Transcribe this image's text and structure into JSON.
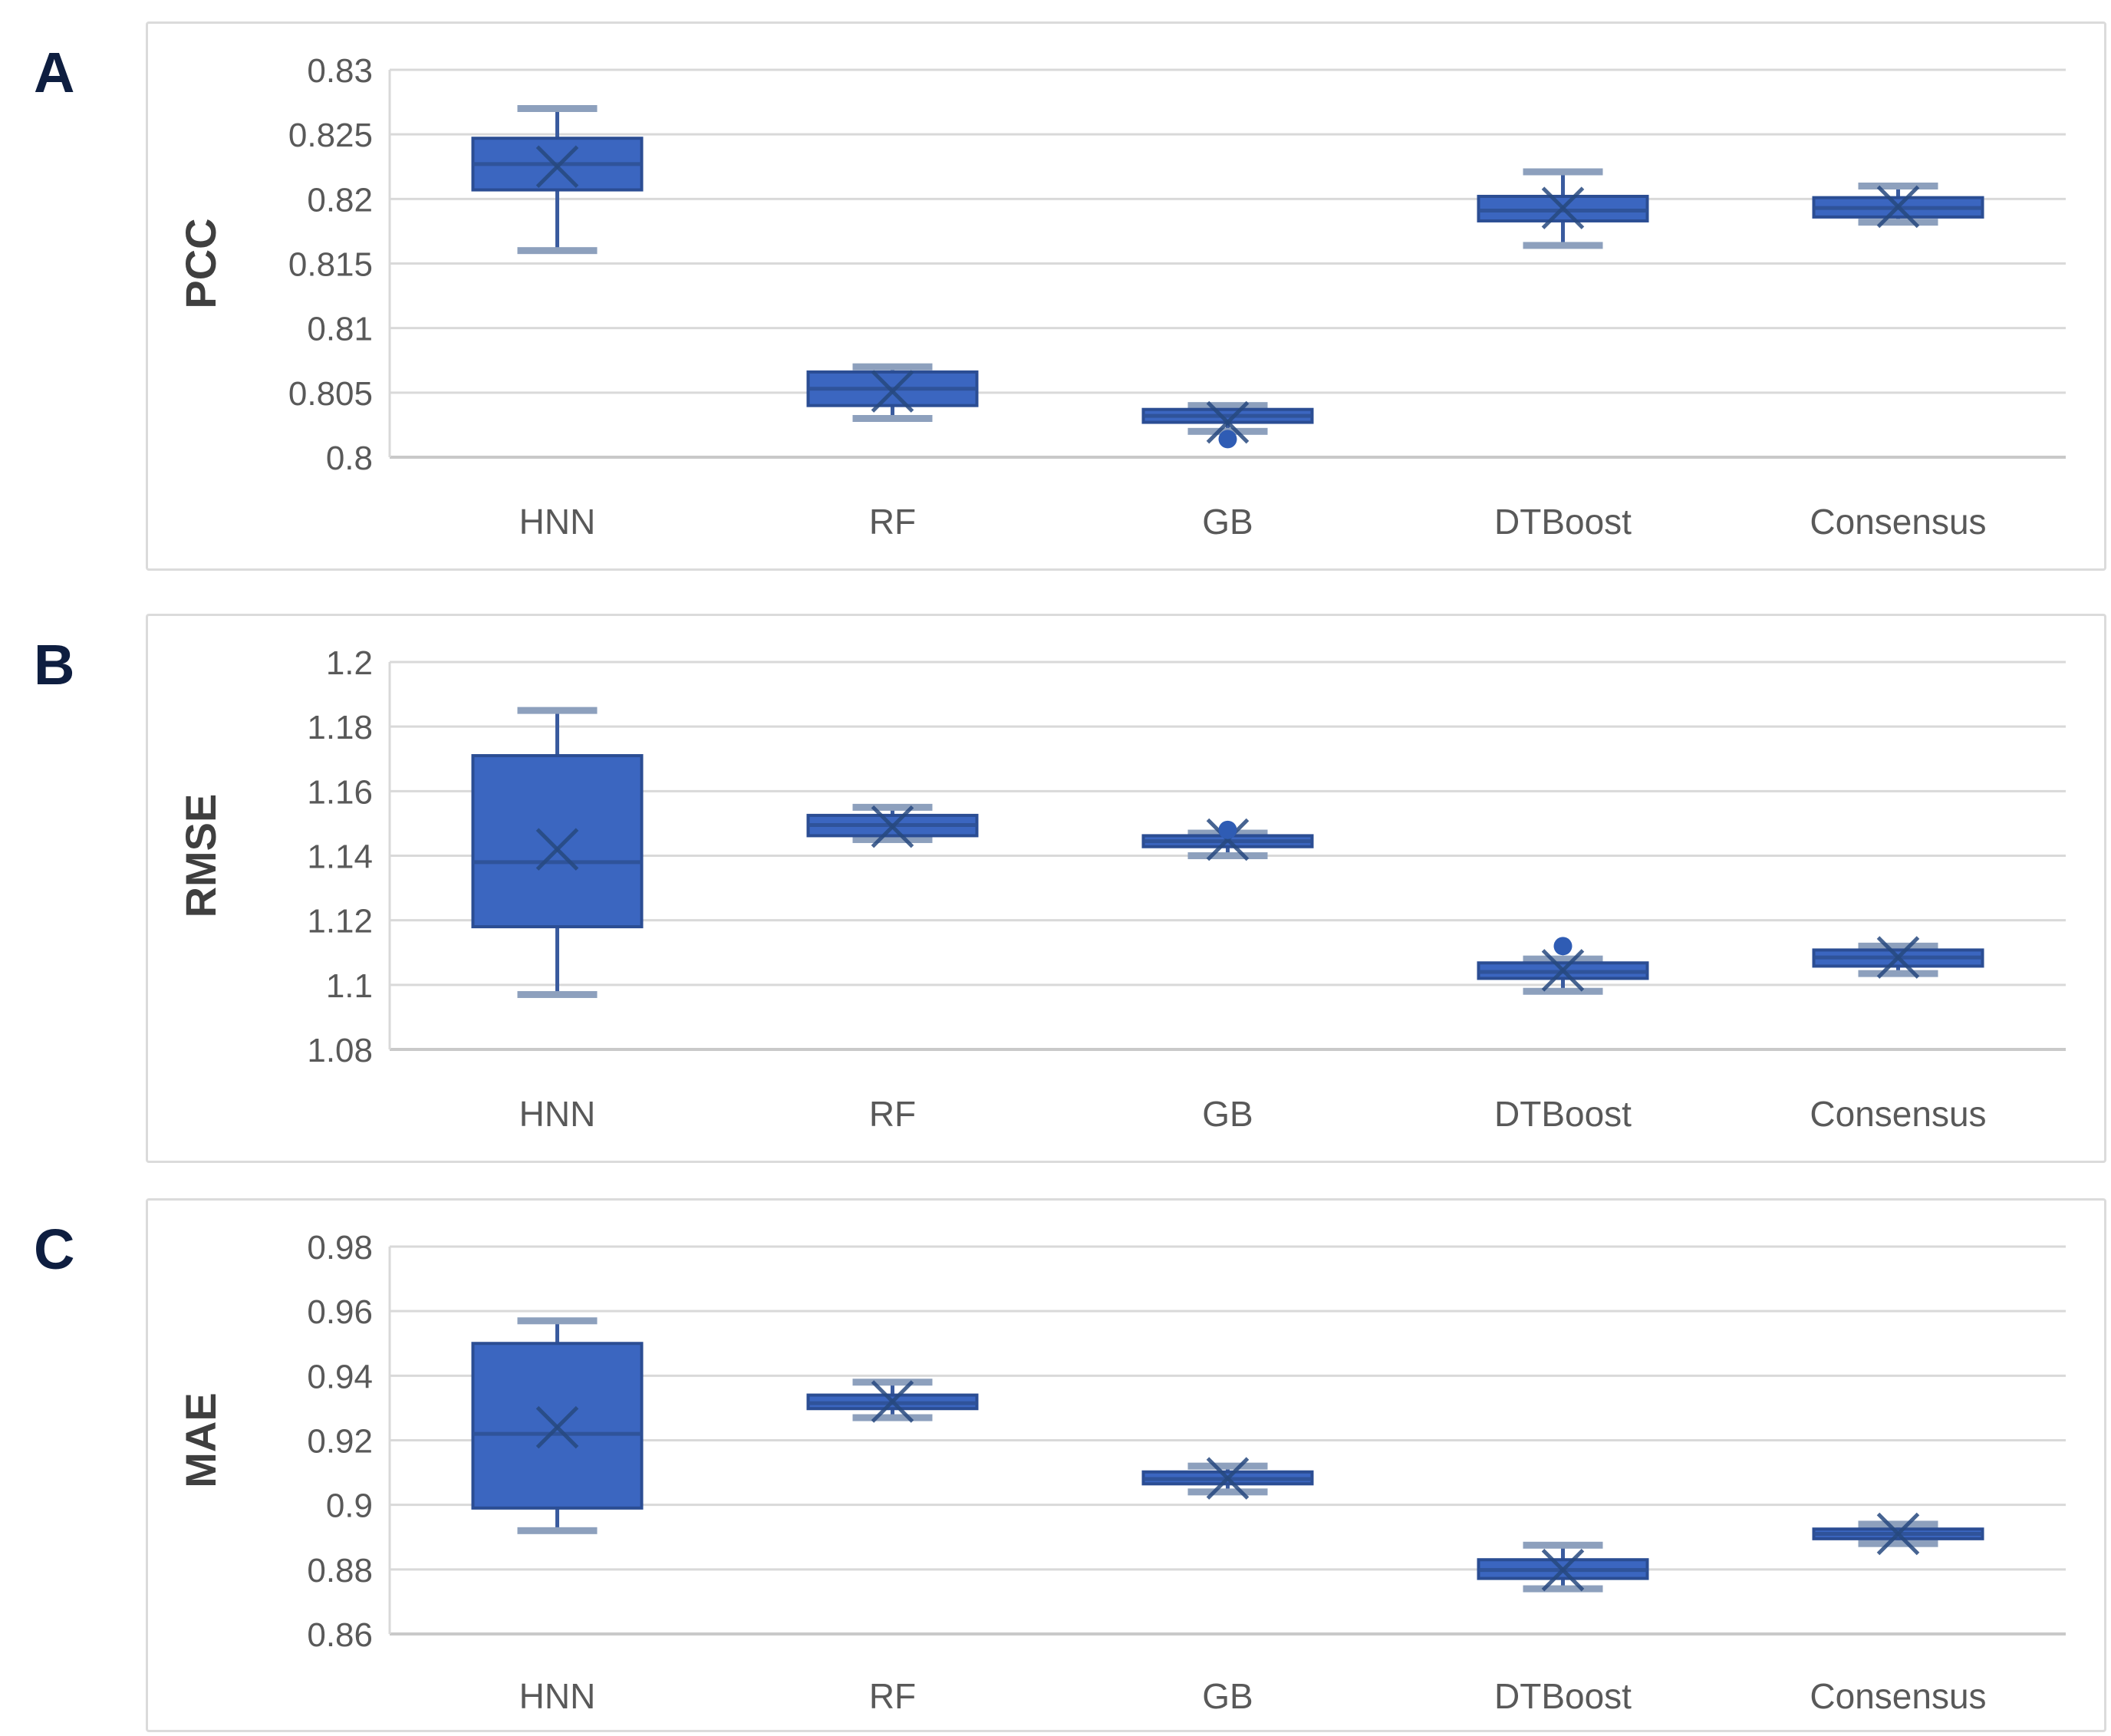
{
  "figure": {
    "background": "#ffffff",
    "panel_letters": [
      "A",
      "B",
      "C"
    ]
  },
  "colors": {
    "box_fill": "#3b66c0",
    "box_border": "#2b4d93",
    "median_line": "#2e5196",
    "whisker_line": "#3a5b9e",
    "whisker_cap": "#8da0bd",
    "mean_marker": "#27497f",
    "outlier_dot": "#2f5cb4",
    "gridline": "#d9d9d9",
    "axis_line": "#c9c9c9",
    "tick_text": "#595959",
    "category_text": "#595959",
    "axis_title_text": "#3f3f3f"
  },
  "chart_data": [
    {
      "type": "boxplot",
      "panel_label": "A",
      "ylabel": "PCC",
      "categories": [
        "HNN",
        "RF",
        "GB",
        "DTBoost",
        "Consensus"
      ],
      "ylim": [
        0.8,
        0.83
      ],
      "ytick_step": 0.005,
      "yticks": [
        "0.83",
        "0.825",
        "0.82",
        "0.815",
        "0.81",
        "0.805",
        "0.8"
      ],
      "grid": true,
      "series": [
        {
          "name": "HNN",
          "whisker_low": 0.816,
          "q1": 0.8207,
          "median": 0.8227,
          "q3": 0.8247,
          "whisker_high": 0.827,
          "mean": 0.8225,
          "outliers": []
        },
        {
          "name": "RF",
          "whisker_low": 0.803,
          "q1": 0.804,
          "median": 0.8053,
          "q3": 0.8066,
          "whisker_high": 0.807,
          "mean": 0.8051,
          "outliers": []
        },
        {
          "name": "GB",
          "whisker_low": 0.802,
          "q1": 0.8027,
          "median": 0.8032,
          "q3": 0.8037,
          "whisker_high": 0.804,
          "mean": 0.8027,
          "outliers": [
            0.8014
          ]
        },
        {
          "name": "DTBoost",
          "whisker_low": 0.8164,
          "q1": 0.8183,
          "median": 0.8191,
          "q3": 0.8202,
          "whisker_high": 0.8221,
          "mean": 0.8193,
          "outliers": []
        },
        {
          "name": "Consensus",
          "whisker_low": 0.8182,
          "q1": 0.8186,
          "median": 0.8193,
          "q3": 0.8201,
          "whisker_high": 0.821,
          "mean": 0.8194,
          "outliers": []
        }
      ]
    },
    {
      "type": "boxplot",
      "panel_label": "B",
      "ylabel": "RMSE",
      "categories": [
        "HNN",
        "RF",
        "GB",
        "DTBoost",
        "Consensus"
      ],
      "ylim": [
        1.08,
        1.2
      ],
      "ytick_step": 0.02,
      "yticks": [
        "1.2",
        "1.18",
        "1.16",
        "1.14",
        "1.12",
        "1.1",
        "1.08"
      ],
      "grid": true,
      "series": [
        {
          "name": "HNN",
          "whisker_low": 1.097,
          "q1": 1.118,
          "median": 1.138,
          "q3": 1.171,
          "whisker_high": 1.185,
          "mean": 1.142,
          "outliers": []
        },
        {
          "name": "RF",
          "whisker_low": 1.145,
          "q1": 1.1462,
          "median": 1.1495,
          "q3": 1.1525,
          "whisker_high": 1.155,
          "mean": 1.149,
          "outliers": []
        },
        {
          "name": "GB",
          "whisker_low": 1.14,
          "q1": 1.1428,
          "median": 1.1445,
          "q3": 1.1462,
          "whisker_high": 1.147,
          "mean": 1.145,
          "outliers": [
            1.148
          ]
        },
        {
          "name": "DTBoost",
          "whisker_low": 1.098,
          "q1": 1.102,
          "median": 1.104,
          "q3": 1.1068,
          "whisker_high": 1.108,
          "mean": 1.1045,
          "outliers": [
            1.112
          ]
        },
        {
          "name": "Consensus",
          "whisker_low": 1.1035,
          "q1": 1.1058,
          "median": 1.1085,
          "q3": 1.1108,
          "whisker_high": 1.112,
          "mean": 1.1085,
          "outliers": []
        }
      ]
    },
    {
      "type": "boxplot",
      "panel_label": "C",
      "ylabel": "MAE",
      "categories": [
        "HNN",
        "RF",
        "GB",
        "DTBoost",
        "Consensus"
      ],
      "ylim": [
        0.86,
        0.98
      ],
      "ytick_step": 0.02,
      "yticks": [
        "0.98",
        "0.96",
        "0.94",
        "0.92",
        "0.9",
        "0.88",
        "0.86"
      ],
      "grid": true,
      "series": [
        {
          "name": "HNN",
          "whisker_low": 0.892,
          "q1": 0.899,
          "median": 0.922,
          "q3": 0.95,
          "whisker_high": 0.957,
          "mean": 0.924,
          "outliers": []
        },
        {
          "name": "RF",
          "whisker_low": 0.927,
          "q1": 0.9298,
          "median": 0.9315,
          "q3": 0.934,
          "whisker_high": 0.938,
          "mean": 0.932,
          "outliers": []
        },
        {
          "name": "GB",
          "whisker_low": 0.904,
          "q1": 0.9065,
          "median": 0.908,
          "q3": 0.9102,
          "whisker_high": 0.912,
          "mean": 0.9082,
          "outliers": []
        },
        {
          "name": "DTBoost",
          "whisker_low": 0.874,
          "q1": 0.8772,
          "median": 0.8798,
          "q3": 0.883,
          "whisker_high": 0.8875,
          "mean": 0.8798,
          "outliers": []
        },
        {
          "name": "Consensus",
          "whisker_low": 0.888,
          "q1": 0.8895,
          "median": 0.891,
          "q3": 0.8925,
          "whisker_high": 0.894,
          "mean": 0.891,
          "outliers": []
        }
      ]
    }
  ]
}
